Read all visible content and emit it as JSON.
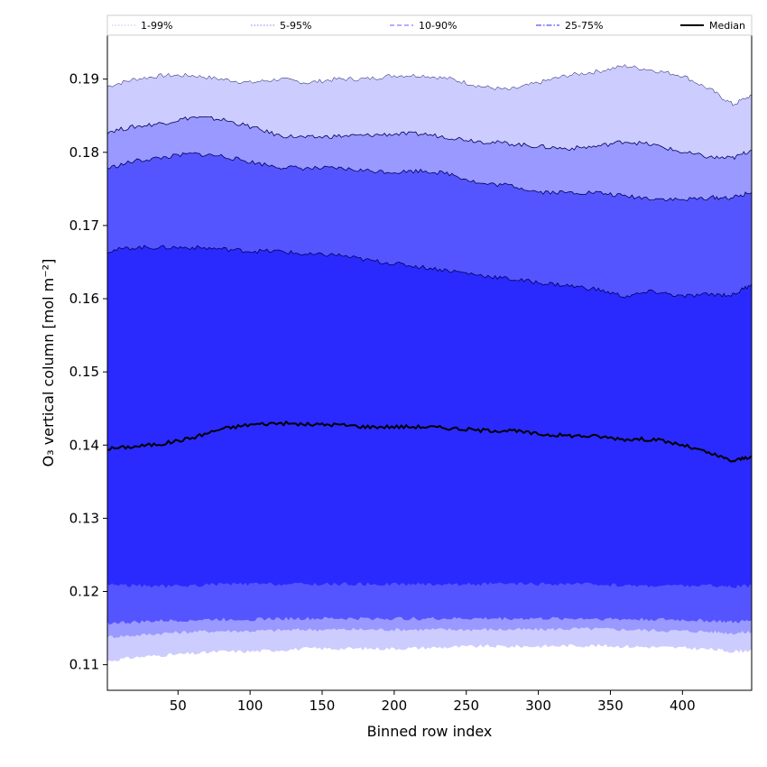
{
  "chart_data": {
    "type": "area",
    "title": "",
    "xlabel": "Binned row index",
    "ylabel": "O₃ vertical column [mol m⁻²]",
    "xlim": [
      1,
      448
    ],
    "ylim": [
      0.1065,
      0.196
    ],
    "x_ticks": [
      50,
      100,
      150,
      200,
      250,
      300,
      350,
      400
    ],
    "y_ticks": [
      0.11,
      0.12,
      0.13,
      0.14,
      0.15,
      0.16,
      0.17,
      0.18,
      0.19
    ],
    "y_tick_labels": [
      "0.11",
      "0.12",
      "0.13",
      "0.14",
      "0.15",
      "0.16",
      "0.17",
      "0.18",
      "0.19"
    ],
    "grid": false,
    "legend_position": "top",
    "x": [
      1,
      20,
      40,
      60,
      80,
      100,
      120,
      140,
      160,
      180,
      200,
      220,
      240,
      260,
      280,
      300,
      320,
      340,
      360,
      380,
      400,
      420,
      435,
      448
    ],
    "bands": [
      {
        "name": "1-99%",
        "color": "#ccccff",
        "lower": [
          0.1105,
          0.111,
          0.1113,
          0.1115,
          0.1118,
          0.1118,
          0.112,
          0.1122,
          0.1122,
          0.1122,
          0.1122,
          0.1123,
          0.1124,
          0.1125,
          0.1125,
          0.1125,
          0.1126,
          0.1126,
          0.1125,
          0.1124,
          0.1123,
          0.1121,
          0.1118,
          0.112
        ],
        "upper": [
          0.189,
          0.19,
          0.1905,
          0.1905,
          0.19,
          0.1895,
          0.19,
          0.1895,
          0.19,
          0.19,
          0.1905,
          0.1905,
          0.19,
          0.189,
          0.1885,
          0.1895,
          0.1905,
          0.191,
          0.1918,
          0.1912,
          0.1905,
          0.1885,
          0.1865,
          0.1878
        ]
      },
      {
        "name": "5-95%",
        "color": "#9999ff",
        "lower": [
          0.1138,
          0.114,
          0.1143,
          0.1145,
          0.1146,
          0.1146,
          0.1147,
          0.1148,
          0.1148,
          0.1148,
          0.1148,
          0.1148,
          0.1148,
          0.1148,
          0.1148,
          0.1148,
          0.1149,
          0.1149,
          0.1148,
          0.1147,
          0.1146,
          0.1145,
          0.1143,
          0.1145
        ],
        "upper": [
          0.1828,
          0.1835,
          0.184,
          0.1848,
          0.1845,
          0.1835,
          0.1823,
          0.182,
          0.1822,
          0.1823,
          0.1825,
          0.1825,
          0.182,
          0.1815,
          0.1812,
          0.1808,
          0.1805,
          0.1808,
          0.1815,
          0.181,
          0.18,
          0.1793,
          0.1792,
          0.1803
        ]
      },
      {
        "name": "10-90%",
        "color": "#5555ff",
        "lower": [
          0.1157,
          0.1158,
          0.116,
          0.1161,
          0.1162,
          0.1162,
          0.1163,
          0.1163,
          0.1163,
          0.1163,
          0.1163,
          0.1163,
          0.1163,
          0.1163,
          0.1163,
          0.1163,
          0.1163,
          0.1163,
          0.1162,
          0.1162,
          0.1161,
          0.116,
          0.1158,
          0.116
        ],
        "upper": [
          0.1778,
          0.1788,
          0.1793,
          0.1798,
          0.1795,
          0.1787,
          0.178,
          0.1778,
          0.1778,
          0.1775,
          0.1773,
          0.1775,
          0.177,
          0.1757,
          0.1755,
          0.1746,
          0.1745,
          0.1745,
          0.174,
          0.1737,
          0.1735,
          0.1738,
          0.1738,
          0.1745
        ]
      },
      {
        "name": "25-75%",
        "color": "#2a2aff",
        "lower": [
          0.121,
          0.1208,
          0.1207,
          0.1208,
          0.121,
          0.121,
          0.121,
          0.121,
          0.121,
          0.121,
          0.121,
          0.121,
          0.121,
          0.121,
          0.121,
          0.121,
          0.121,
          0.121,
          0.1208,
          0.1208,
          0.1208,
          0.1208,
          0.1206,
          0.1208
        ],
        "upper": [
          0.1665,
          0.167,
          0.167,
          0.167,
          0.1668,
          0.1665,
          0.1665,
          0.166,
          0.166,
          0.1653,
          0.1648,
          0.1643,
          0.1638,
          0.1632,
          0.1627,
          0.1622,
          0.1618,
          0.1613,
          0.1603,
          0.161,
          0.1603,
          0.1606,
          0.1605,
          0.162
        ]
      }
    ],
    "median": {
      "name": "Median",
      "color": "#000000",
      "values": [
        0.1395,
        0.1398,
        0.1402,
        0.141,
        0.1422,
        0.1428,
        0.143,
        0.1428,
        0.1428,
        0.1425,
        0.1425,
        0.1425,
        0.1423,
        0.142,
        0.142,
        0.1415,
        0.1413,
        0.1412,
        0.1408,
        0.1408,
        0.14,
        0.1388,
        0.1378,
        0.1385
      ]
    },
    "legend": [
      {
        "label": "1-99%",
        "color": "#ccccff",
        "style": "dotted"
      },
      {
        "label": "5-95%",
        "color": "#9999ff",
        "style": "dotted"
      },
      {
        "label": "10-90%",
        "color": "#8080ff",
        "style": "dashed"
      },
      {
        "label": "25-75%",
        "color": "#5555ee",
        "style": "dashdot"
      },
      {
        "label": "Median",
        "color": "#000000",
        "style": "solid"
      }
    ]
  }
}
